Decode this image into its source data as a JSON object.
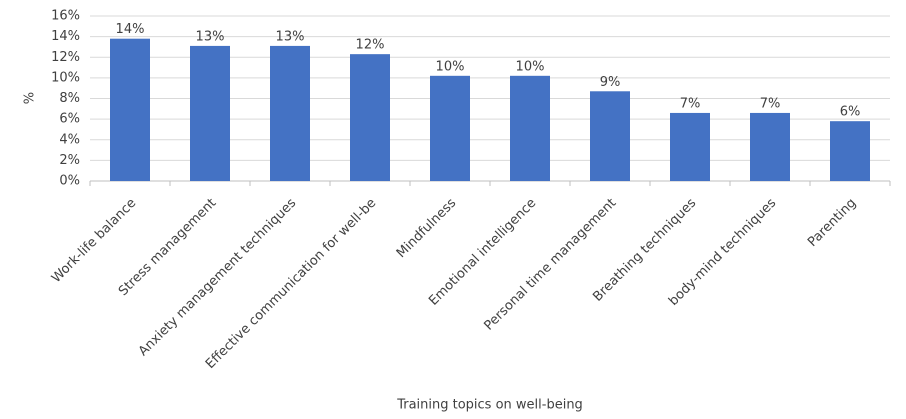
{
  "chart_data": {
    "type": "bar",
    "x_label": "Training topics on well-being",
    "y_label": "%",
    "categories": [
      "Work-life balance",
      "Stress management",
      "Anxiety management techniques",
      "Effective communication for well-be",
      "Mindfulness",
      "Emotional intelligence",
      "Personal time management",
      "Breathing techniques",
      "body-mind techniques",
      "Parenting"
    ],
    "values": [
      13.8,
      13.1,
      13.1,
      12.3,
      10.2,
      10.2,
      8.7,
      6.6,
      6.6,
      5.8
    ],
    "value_labels": [
      "14%",
      "13%",
      "13%",
      "12%",
      "10%",
      "10%",
      "9%",
      "7%",
      "7%",
      "6%"
    ],
    "color": "#4472c4",
    "ylim": [
      0,
      16
    ],
    "yticks": [
      {
        "value": 0,
        "label": "0%"
      },
      {
        "value": 2,
        "label": "2%"
      },
      {
        "value": 4,
        "label": "4%"
      },
      {
        "value": 6,
        "label": "6%"
      },
      {
        "value": 8,
        "label": "8%"
      },
      {
        "value": 10,
        "label": "10%"
      },
      {
        "value": 12,
        "label": "12%"
      },
      {
        "value": 14,
        "label": "14%"
      },
      {
        "value": 16,
        "label": "16%"
      }
    ],
    "grid": true
  }
}
